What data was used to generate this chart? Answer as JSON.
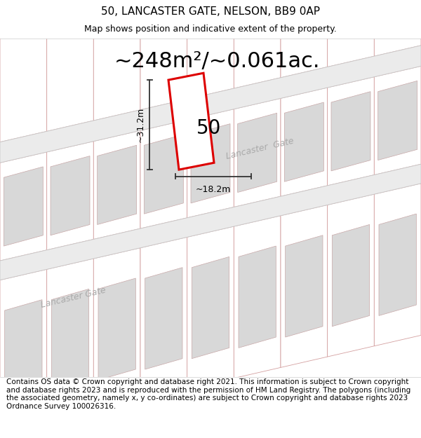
{
  "title_line1": "50, LANCASTER GATE, NELSON, BB9 0AP",
  "title_line2": "Map shows position and indicative extent of the property.",
  "area_text": "~248m²/~0.061ac.",
  "property_number": "50",
  "dim_height": "~31.2m",
  "dim_width": "~18.2m",
  "footer_text": "Contains OS data © Crown copyright and database right 2021. This information is subject to Crown copyright and database rights 2023 and is reproduced with the permission of HM Land Registry. The polygons (including the associated geometry, namely x, y co-ordinates) are subject to Crown copyright and database rights 2023 Ordnance Survey 100026316.",
  "map_bg": "#f7f4f4",
  "green_color": "#dce8dc",
  "road_bg": "#ebebeb",
  "road_line_color": "#c8c8c8",
  "plot_line_color": "#d4a0a0",
  "plot_fill": "none",
  "building_color": "#d8d8d8",
  "building_edge": "#c8a8a8",
  "prop_color": "#dd0000",
  "prop_fill": "#ffffff",
  "dim_line_color": "#333333",
  "street_color": "#aaaaaa",
  "title_fontsize": 11,
  "subtitle_fontsize": 9,
  "area_fontsize": 22,
  "prop_num_fontsize": 20,
  "street_fontsize": 9,
  "dim_fontsize": 9,
  "footer_fontsize": 7.5
}
